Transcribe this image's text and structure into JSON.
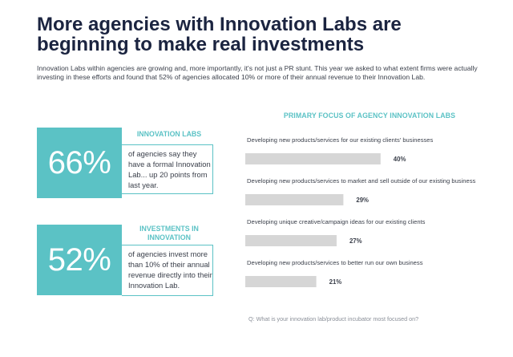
{
  "header": {
    "title_line1": "More agencies with Innovation Labs are",
    "title_line2": "beginning to make real investments",
    "intro": "Innovation Labs within agencies are growing and, more importantly, it's not just a PR stunt. This year we asked to what extent firms were actually investing in these efforts and found that 52% of agencies allocated 10% or more of their annual revenue to their Innovation Lab."
  },
  "stats": [
    {
      "value": "66%",
      "heading_line1": "INNOVATION LABS",
      "heading_line2": "",
      "text": "of agencies say they have a formal Innovation Lab... up 20 points from last year."
    },
    {
      "value": "52%",
      "heading_line1": "INVESTMENTS IN",
      "heading_line2": "INNOVATION",
      "text": "of agencies invest more than 10% of their annual revenue directly into their Innovation Lab."
    }
  ],
  "colors": {
    "accent": "#5bc2c5",
    "bar": "#d6d6d6",
    "title": "#1b2440"
  },
  "chart_data": {
    "type": "bar",
    "orientation": "horizontal",
    "title": "PRIMARY FOCUS OF AGENCY INNOVATION LABS",
    "categories": [
      "Developing new products/services for our existing clients' businesses",
      "Developing new products/services to market and sell outside of our existing business",
      "Developing unique creative/campaign ideas for our existing clients",
      "Developing new products/services to better run our own business"
    ],
    "values": [
      40,
      29,
      27,
      21
    ],
    "labels": [
      "40%",
      "29%",
      "27%",
      "21%"
    ],
    "unit": "%",
    "grid": false,
    "legend": "none"
  },
  "footer": {
    "source": "Q: What is your innovation lab/product incubator most focused on?"
  }
}
